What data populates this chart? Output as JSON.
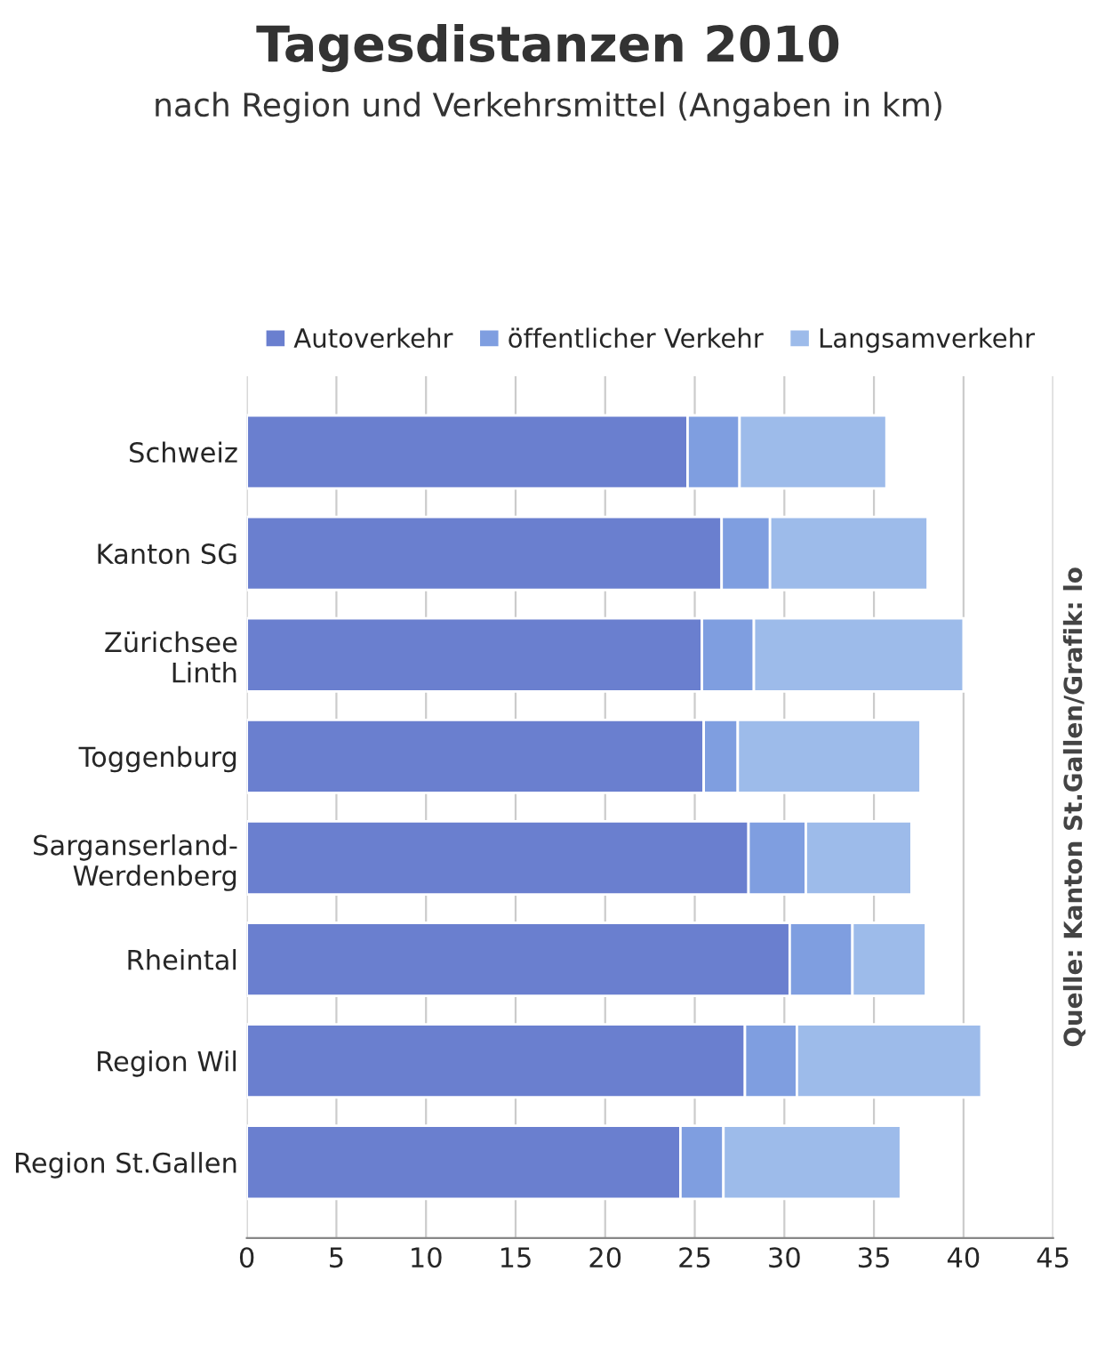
{
  "chart_data": {
    "type": "bar",
    "orientation": "horizontal",
    "stacked": true,
    "title": "Tagesdistanzen 2010",
    "subtitle": "nach Region und Verkehrsmittel (Angaben in km)",
    "categories": [
      "Schweiz",
      "Kanton SG",
      "Zürichsee\nLinth",
      "Toggenburg",
      "Sarganserland-\nWerdenberg",
      "Rheintal",
      "Region Wil",
      "Region St.Gallen"
    ],
    "series": [
      {
        "name": "Autoverkehr",
        "color": "#6a7fcf",
        "values": [
          24.6,
          26.5,
          25.4,
          25.5,
          28.0,
          30.3,
          27.8,
          24.2
        ]
      },
      {
        "name": "öffentlicher Verkehr",
        "color": "#7f9ee0",
        "values": [
          2.9,
          2.7,
          2.9,
          1.9,
          3.2,
          3.5,
          2.9,
          2.4
        ]
      },
      {
        "name": "Langsamverkehr",
        "color": "#9dbbea",
        "values": [
          8.2,
          8.8,
          11.7,
          10.2,
          5.9,
          4.1,
          10.3,
          9.9
        ]
      }
    ],
    "xlim": [
      0,
      45
    ],
    "xticks": [
      0,
      5,
      10,
      15,
      20,
      25,
      30,
      35,
      40,
      45
    ],
    "grid": "x",
    "legend": "top",
    "annotations": [
      "Quelle: Kanton St.Gallen/Grafik: lo"
    ]
  }
}
